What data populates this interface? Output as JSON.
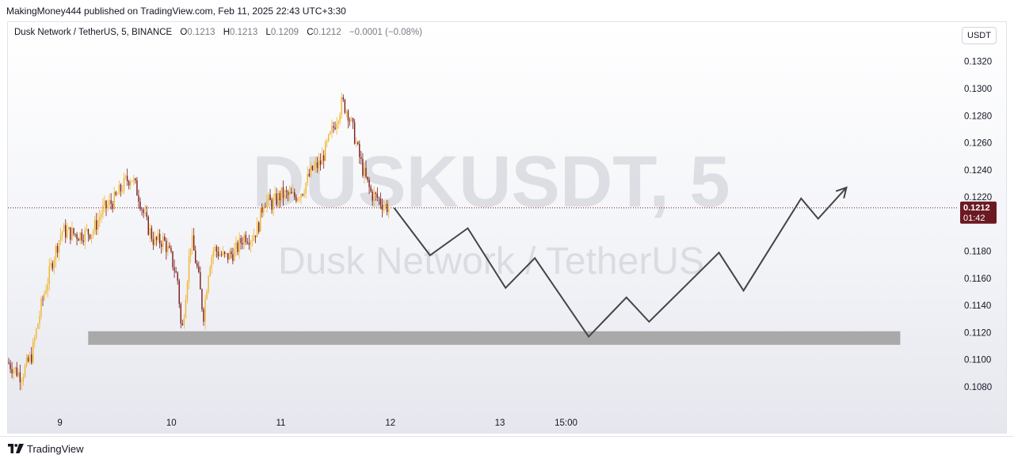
{
  "publish_line": "MakingMoney444 published on TradingView.com, Feb 11, 2025 22:43 UTC+3:30",
  "legend": {
    "symbol": "Dusk Network / TetherUS, 5, BINANCE",
    "o_label": "O",
    "o": "0.1213",
    "h_label": "H",
    "h": "0.1213",
    "l_label": "L",
    "l": "0.1209",
    "c_label": "C",
    "c": "0.1212",
    "change": "−0.0001 (−0.08%)"
  },
  "currency": "USDT",
  "watermark": {
    "ticker": "DUSKUSDT, 5",
    "name": "Dusk Network / TetherUS"
  },
  "price_label": {
    "value": "0.1212",
    "countdown": "01:42"
  },
  "footer": {
    "brand": "TradingView"
  },
  "colors": {
    "up_candle": "#f0b429",
    "down_candle": "#7b1a1a",
    "price_badge": "#6b1a22",
    "support_zone": "#a9a9a9",
    "projection": "#444444"
  },
  "chart_data": {
    "type": "candlestick",
    "symbol": "DUSKUSDT",
    "interval": "5",
    "y_ticks": [
      "0.1320",
      "0.1300",
      "0.1280",
      "0.1260",
      "0.1240",
      "0.1220",
      "0.1180",
      "0.1160",
      "0.1140",
      "0.1120",
      "0.1100",
      "0.1080"
    ],
    "ylim": [
      0.1059,
      0.1349
    ],
    "x_ticks": [
      {
        "label": "9",
        "pos": 0.055
      },
      {
        "label": "10",
        "pos": 0.173
      },
      {
        "label": "11",
        "pos": 0.289
      },
      {
        "label": "12",
        "pos": 0.405
      },
      {
        "label": "13",
        "pos": 0.521
      },
      {
        "label": "15:00",
        "pos": 0.591
      }
    ],
    "price_path": [
      [
        0.0,
        0.1098
      ],
      [
        0.014,
        0.1088
      ],
      [
        0.025,
        0.1103
      ],
      [
        0.036,
        0.1142
      ],
      [
        0.048,
        0.1175
      ],
      [
        0.057,
        0.1195
      ],
      [
        0.075,
        0.1192
      ],
      [
        0.09,
        0.1195
      ],
      [
        0.1,
        0.121
      ],
      [
        0.113,
        0.1218
      ],
      [
        0.125,
        0.1232
      ],
      [
        0.131,
        0.1235
      ],
      [
        0.138,
        0.1222
      ],
      [
        0.147,
        0.12
      ],
      [
        0.155,
        0.1187
      ],
      [
        0.165,
        0.1188
      ],
      [
        0.173,
        0.1175
      ],
      [
        0.18,
        0.1158
      ],
      [
        0.184,
        0.1117
      ],
      [
        0.188,
        0.1148
      ],
      [
        0.194,
        0.119
      ],
      [
        0.201,
        0.1165
      ],
      [
        0.207,
        0.1132
      ],
      [
        0.213,
        0.117
      ],
      [
        0.218,
        0.1182
      ],
      [
        0.23,
        0.1175
      ],
      [
        0.241,
        0.118
      ],
      [
        0.251,
        0.1192
      ],
      [
        0.258,
        0.119
      ],
      [
        0.265,
        0.1198
      ],
      [
        0.271,
        0.1218
      ],
      [
        0.28,
        0.1215
      ],
      [
        0.29,
        0.1222
      ],
      [
        0.303,
        0.122
      ],
      [
        0.312,
        0.1225
      ],
      [
        0.322,
        0.124
      ],
      [
        0.331,
        0.1245
      ],
      [
        0.34,
        0.1262
      ],
      [
        0.348,
        0.1278
      ],
      [
        0.354,
        0.129
      ],
      [
        0.36,
        0.1283
      ],
      [
        0.366,
        0.1268
      ],
      [
        0.372,
        0.125
      ],
      [
        0.378,
        0.1235
      ],
      [
        0.385,
        0.1222
      ],
      [
        0.392,
        0.1219
      ],
      [
        0.398,
        0.1214
      ],
      [
        0.404,
        0.1212
      ]
    ],
    "current_price": 0.1212,
    "support_zone": {
      "from_x": 0.085,
      "to_x": 0.945,
      "low": 0.1111,
      "high": 0.1121
    },
    "projection_path": [
      [
        0.409,
        0.1212
      ],
      [
        0.447,
        0.1177
      ],
      [
        0.487,
        0.1197
      ],
      [
        0.527,
        0.1153
      ],
      [
        0.558,
        0.1175
      ],
      [
        0.615,
        0.1117
      ],
      [
        0.655,
        0.1146
      ],
      [
        0.679,
        0.1128
      ],
      [
        0.753,
        0.1179
      ],
      [
        0.779,
        0.1151
      ],
      [
        0.84,
        0.1219
      ],
      [
        0.858,
        0.1204
      ],
      [
        0.888,
        0.1227
      ]
    ]
  }
}
